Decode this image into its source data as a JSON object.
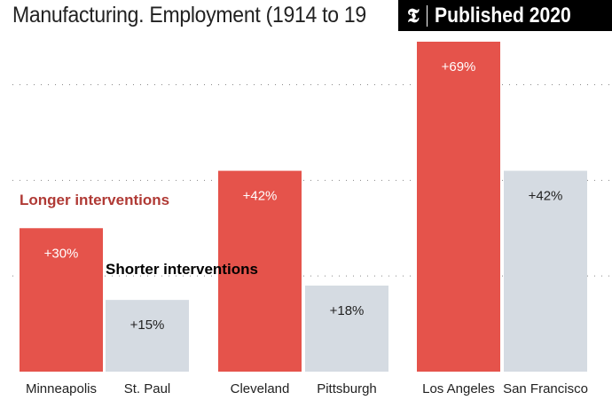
{
  "header": {
    "title": "Manufacturing. Employment (1914 to 19",
    "badge_logo": "𝕿",
    "badge_text": "Published 2020"
  },
  "chart_data": {
    "type": "bar",
    "title": "Manufacturing. Employment (1914 to 19",
    "categories": [
      "Minneapolis",
      "St. Paul",
      "Cleveland",
      "Pittsburgh",
      "Los Angeles",
      "San Francisco"
    ],
    "values": [
      30,
      15,
      42,
      18,
      69,
      42
    ],
    "data_labels": [
      "+30%",
      "+15%",
      "+42%",
      "+18%",
      "+69%",
      "+42%"
    ],
    "groups": [
      "Longer interventions",
      "Shorter interventions",
      "Longer interventions",
      "Shorter interventions",
      "Longer interventions",
      "Shorter interventions"
    ],
    "ylim": [
      0,
      69
    ],
    "gridlines": [
      20,
      40,
      60
    ],
    "grid": true,
    "colors": {
      "Longer interventions": "#e5534b",
      "Shorter interventions": "#d5dbe2"
    },
    "annotations": [
      {
        "text": "Longer interventions",
        "color": "#b03a35"
      },
      {
        "text": "Shorter interventions",
        "color": "#000000"
      }
    ]
  }
}
